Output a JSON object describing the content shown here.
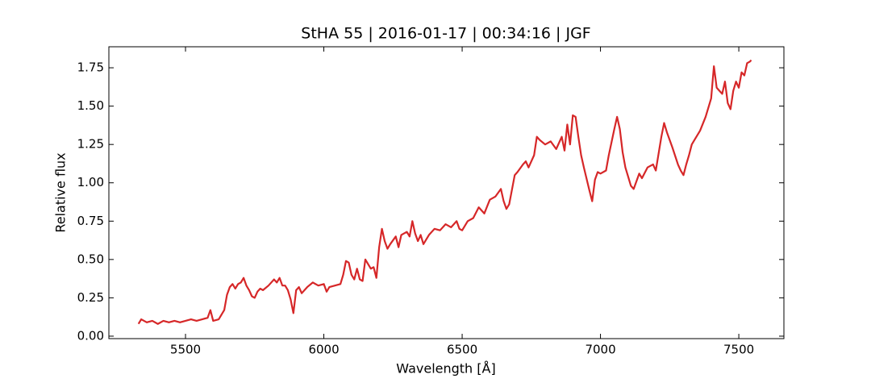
{
  "chart_data": {
    "type": "line",
    "title": "StHA 55 | 2016-01-17 | 00:34:16 | JGF",
    "x_label": "Wavelength [Å]",
    "y_label": "Relative flux",
    "xlim": [
      5223,
      7663
    ],
    "ylim": [
      -0.016,
      1.887
    ],
    "xticks": [
      5500,
      6000,
      6500,
      7000,
      7500
    ],
    "yticks": [
      {
        "value": 0,
        "label": "0.00"
      },
      {
        "value": 0.25,
        "label": "0.25"
      },
      {
        "value": 0.5,
        "label": "0.50"
      },
      {
        "value": 0.75,
        "label": "0.75"
      },
      {
        "value": 1,
        "label": "1.00"
      },
      {
        "value": 1.25,
        "label": "1.25"
      },
      {
        "value": 1.5,
        "label": "1.50"
      },
      {
        "value": 1.75,
        "label": "1.75"
      }
    ],
    "x": [
      5330,
      5340,
      5360,
      5380,
      5400,
      5420,
      5440,
      5460,
      5480,
      5500,
      5520,
      5540,
      5560,
      5580,
      5590,
      5600,
      5620,
      5640,
      5650,
      5660,
      5670,
      5680,
      5690,
      5700,
      5710,
      5720,
      5730,
      5740,
      5750,
      5760,
      5770,
      5780,
      5800,
      5820,
      5830,
      5840,
      5850,
      5860,
      5870,
      5880,
      5890,
      5900,
      5910,
      5920,
      5940,
      5960,
      5980,
      6000,
      6010,
      6020,
      6040,
      6060,
      6070,
      6080,
      6090,
      6100,
      6110,
      6120,
      6130,
      6140,
      6150,
      6160,
      6170,
      6180,
      6190,
      6200,
      6210,
      6220,
      6230,
      6240,
      6260,
      6270,
      6280,
      6300,
      6310,
      6320,
      6330,
      6340,
      6350,
      6360,
      6380,
      6400,
      6420,
      6440,
      6460,
      6480,
      6490,
      6500,
      6520,
      6540,
      6560,
      6580,
      6600,
      6620,
      6640,
      6650,
      6660,
      6670,
      6690,
      6700,
      6720,
      6730,
      6740,
      6760,
      6770,
      6780,
      6800,
      6820,
      6840,
      6860,
      6870,
      6880,
      6890,
      6900,
      6910,
      6920,
      6930,
      6940,
      6960,
      6970,
      6980,
      6990,
      7000,
      7020,
      7030,
      7050,
      7060,
      7070,
      7080,
      7090,
      7100,
      7110,
      7120,
      7140,
      7150,
      7170,
      7190,
      7200,
      7220,
      7230,
      7240,
      7260,
      7280,
      7290,
      7300,
      7310,
      7320,
      7330,
      7340,
      7360,
      7380,
      7400,
      7410,
      7420,
      7430,
      7440,
      7450,
      7460,
      7470,
      7480,
      7490,
      7500,
      7510,
      7520,
      7530,
      7540,
      7545
    ],
    "series": [
      {
        "color": "#d62728",
        "values": [
          0.08,
          0.11,
          0.09,
          0.1,
          0.08,
          0.1,
          0.09,
          0.1,
          0.09,
          0.1,
          0.11,
          0.1,
          0.11,
          0.12,
          0.17,
          0.1,
          0.11,
          0.17,
          0.27,
          0.32,
          0.34,
          0.31,
          0.34,
          0.35,
          0.38,
          0.33,
          0.3,
          0.26,
          0.25,
          0.29,
          0.31,
          0.3,
          0.33,
          0.37,
          0.35,
          0.38,
          0.33,
          0.33,
          0.3,
          0.24,
          0.15,
          0.3,
          0.32,
          0.28,
          0.32,
          0.35,
          0.33,
          0.34,
          0.29,
          0.32,
          0.33,
          0.34,
          0.4,
          0.49,
          0.48,
          0.4,
          0.37,
          0.44,
          0.37,
          0.36,
          0.5,
          0.47,
          0.44,
          0.45,
          0.38,
          0.58,
          0.7,
          0.62,
          0.57,
          0.6,
          0.65,
          0.58,
          0.66,
          0.68,
          0.65,
          0.75,
          0.67,
          0.62,
          0.66,
          0.6,
          0.66,
          0.7,
          0.69,
          0.73,
          0.71,
          0.75,
          0.7,
          0.69,
          0.75,
          0.77,
          0.84,
          0.8,
          0.89,
          0.91,
          0.96,
          0.88,
          0.83,
          0.86,
          1.05,
          1.07,
          1.12,
          1.14,
          1.1,
          1.18,
          1.3,
          1.28,
          1.25,
          1.27,
          1.22,
          1.3,
          1.21,
          1.38,
          1.25,
          1.44,
          1.43,
          1.3,
          1.18,
          1.1,
          0.95,
          0.88,
          1.02,
          1.07,
          1.06,
          1.08,
          1.18,
          1.35,
          1.43,
          1.35,
          1.2,
          1.1,
          1.04,
          0.98,
          0.96,
          1.06,
          1.03,
          1.1,
          1.12,
          1.08,
          1.3,
          1.39,
          1.33,
          1.23,
          1.12,
          1.08,
          1.05,
          1.12,
          1.18,
          1.25,
          1.28,
          1.34,
          1.43,
          1.55,
          1.76,
          1.62,
          1.6,
          1.58,
          1.66,
          1.52,
          1.48,
          1.6,
          1.66,
          1.62,
          1.72,
          1.7,
          1.78,
          1.79,
          1.8
        ]
      }
    ]
  }
}
